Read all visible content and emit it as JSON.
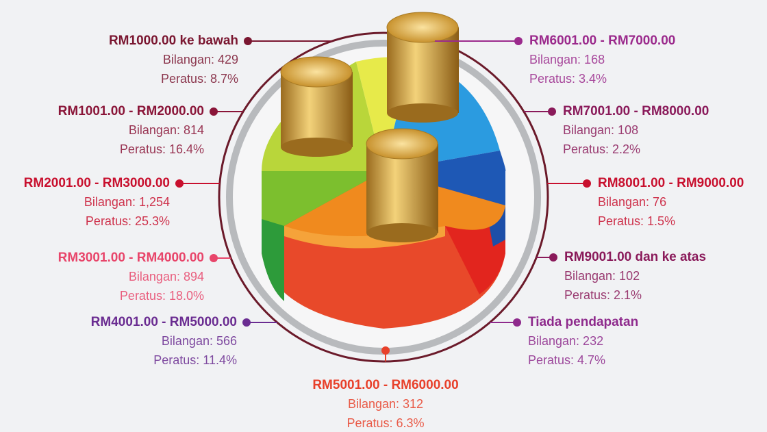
{
  "items": [
    {
      "label": "RM1000.00 ke bawah",
      "count": "Bilangan: 429",
      "percent": "Peratus: 8.7%",
      "color": "#7a1630"
    },
    {
      "label": "RM1001.00 - RM2000.00",
      "count": "Bilangan: 814",
      "percent": "Peratus: 16.4%",
      "color": "#8a1538"
    },
    {
      "label": "RM2001.00 - RM3000.00",
      "count": "Bilangan: 1,254",
      "percent": "Peratus: 25.3%",
      "color": "#c8102e"
    },
    {
      "label": "RM3001.00 - RM4000.00",
      "count": "Bilangan: 894",
      "percent": "Peratus: 18.0%",
      "color": "#e8456a"
    },
    {
      "label": "RM4001.00 - RM5000.00",
      "count": "Bilangan: 566",
      "percent": "Peratus: 11.4%",
      "color": "#6a2c91"
    },
    {
      "label": "RM5001.00 - RM6000.00",
      "count": "Bilangan: 312",
      "percent": "Peratus: 6.3%",
      "color": "#e8402a"
    },
    {
      "label": "RM6001.00 - RM7000.00",
      "count": "Bilangan: 168",
      "percent": "Peratus: 3.4%",
      "color": "#9b2a8c"
    },
    {
      "label": "RM7001.00 - RM8000.00",
      "count": "Bilangan: 108",
      "percent": "Peratus: 2.2%",
      "color": "#8a1a5a"
    },
    {
      "label": "RM8001.00 - RM9000.00",
      "count": "Bilangan: 76",
      "percent": "Peratus: 1.5%",
      "color": "#c8102e"
    },
    {
      "label": "RM9001.00 dan ke atas",
      "count": "Bilangan: 102",
      "percent": "Peratus: 2.1%",
      "color": "#8a1a5a"
    },
    {
      "label": "Tiada pendapatan",
      "count": "Bilangan: 232",
      "percent": "Peratus: 4.7%",
      "color": "#8e2a8c"
    }
  ]
}
